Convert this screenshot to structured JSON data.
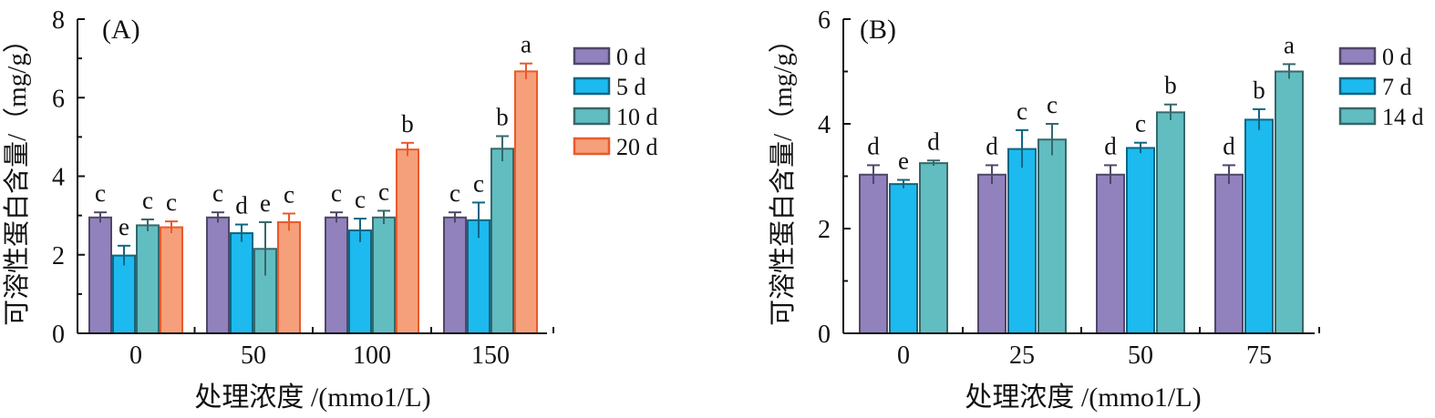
{
  "chart_data": [
    {
      "type": "bar",
      "panel_label": "(A)",
      "ylabel": "可溶性蛋白含量/（mg/g）",
      "xlabel": "处理浓度 /(mmo1/L)",
      "categories": [
        "0",
        "50",
        "100",
        "150"
      ],
      "ylim": [
        0,
        8
      ],
      "yticks": [
        "0",
        "2",
        "4",
        "6",
        "8"
      ],
      "legend_position": "top-right",
      "series": [
        {
          "name": "0 d",
          "color": "#9181bd",
          "values": [
            2.95,
            2.95,
            2.95,
            2.95
          ],
          "errors": [
            0.13,
            0.13,
            0.13,
            0.13
          ],
          "letters": [
            "c",
            "c",
            "c",
            "c"
          ]
        },
        {
          "name": "5 d",
          "color": "#1cbaee",
          "values": [
            1.98,
            2.55,
            2.62,
            2.88
          ],
          "errors": [
            0.25,
            0.22,
            0.3,
            0.45
          ],
          "letters": [
            "e",
            "d",
            "c",
            "c"
          ]
        },
        {
          "name": "10 d",
          "color": "#62bdc1",
          "values": [
            2.75,
            2.15,
            2.95,
            4.7
          ],
          "errors": [
            0.15,
            0.68,
            0.17,
            0.32
          ],
          "letters": [
            "c",
            "e",
            "c",
            "b"
          ]
        },
        {
          "name": "20 d",
          "color": "#f5a07a",
          "edge": "#ea5a2c",
          "values": [
            2.7,
            2.83,
            4.68,
            6.67
          ],
          "errors": [
            0.15,
            0.22,
            0.17,
            0.2
          ],
          "letters": [
            "c",
            "c",
            "b",
            "a"
          ]
        }
      ]
    },
    {
      "type": "bar",
      "panel_label": "(B)",
      "ylabel": "可溶性蛋白含量/（mg/g）",
      "xlabel": "处理浓度 /(mmo1/L)",
      "categories": [
        "0",
        "25",
        "50",
        "75"
      ],
      "ylim": [
        0,
        6
      ],
      "yticks": [
        "0",
        "2",
        "4",
        "6"
      ],
      "legend_position": "top-right",
      "series": [
        {
          "name": "0 d",
          "color": "#9181bd",
          "values": [
            3.03,
            3.03,
            3.03,
            3.03
          ],
          "errors": [
            0.18,
            0.18,
            0.18,
            0.18
          ],
          "letters": [
            "d",
            "d",
            "d",
            "d"
          ]
        },
        {
          "name": "7 d",
          "color": "#1cbaee",
          "values": [
            2.85,
            3.52,
            3.54,
            4.08
          ],
          "errors": [
            0.08,
            0.36,
            0.1,
            0.2
          ],
          "letters": [
            "e",
            "c",
            "c",
            "b"
          ]
        },
        {
          "name": "14 d",
          "color": "#62bdc1",
          "values": [
            3.25,
            3.7,
            4.22,
            5.0
          ],
          "errors": [
            0.05,
            0.3,
            0.15,
            0.14
          ],
          "letters": [
            "d",
            "c",
            "b",
            "a"
          ]
        }
      ]
    }
  ]
}
